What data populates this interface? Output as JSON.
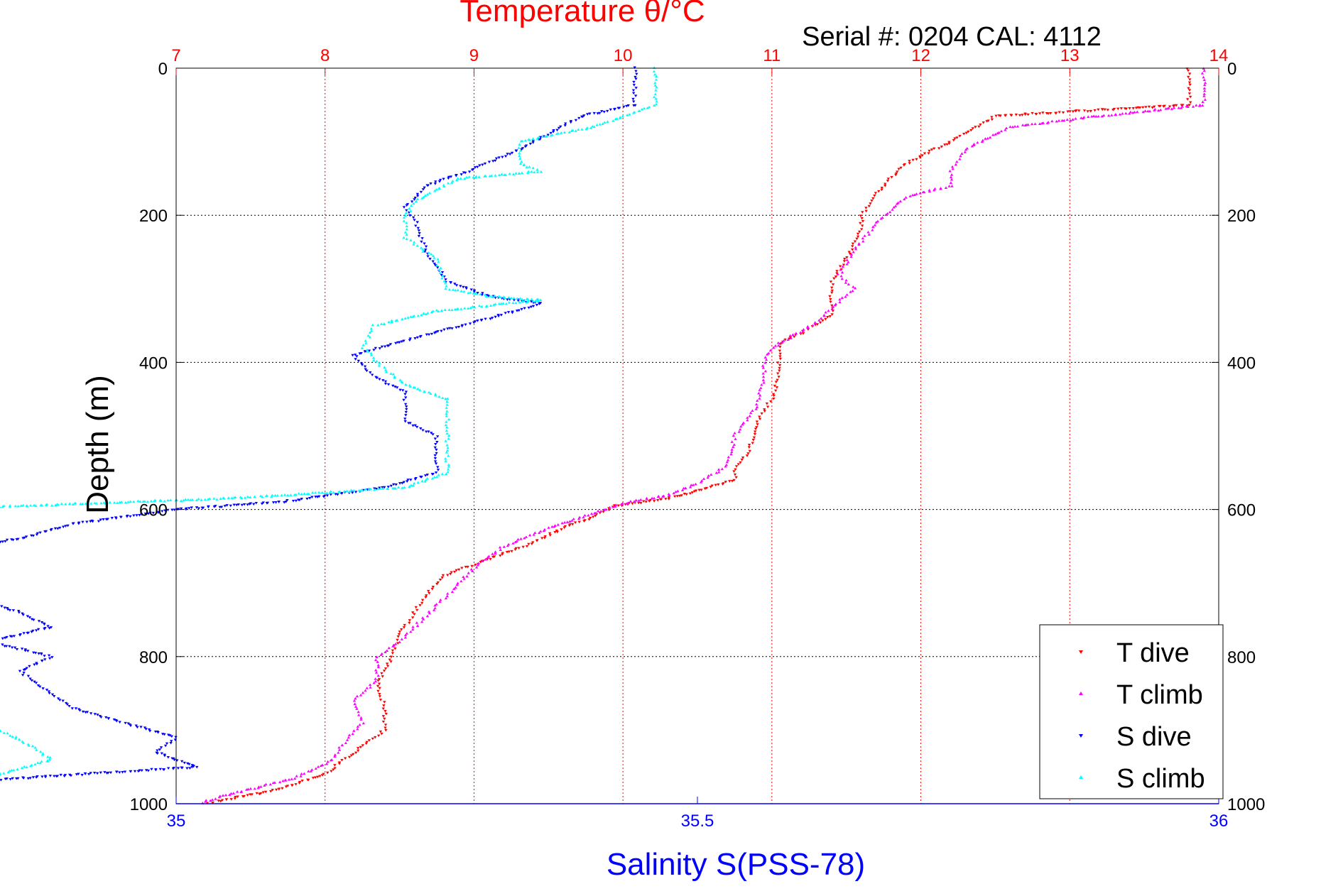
{
  "chart_data": {
    "type": "scatter",
    "title": "Temperature θ/°C",
    "subtitle": "Serial #: 0204  CAL: 4112",
    "ylabel": "Depth (m)",
    "x_top_label": "Temperature θ/°C",
    "x_bottom_label": "Salinity S(PSS-78)",
    "temperature_range": [
      7,
      14
    ],
    "salinity_range": [
      35,
      36
    ],
    "depth_range": [
      0,
      1000
    ],
    "y_reversed": true,
    "grid": true,
    "legend_position": "bottom-right",
    "temperature_ticks": [
      "7",
      "8",
      "9",
      "10",
      "11",
      "12",
      "13",
      "14"
    ],
    "salinity_ticks": [
      "35",
      "35.5",
      "36"
    ],
    "depth_ticks": [
      "0",
      "200",
      "400",
      "600",
      "800",
      "1000"
    ],
    "colors": {
      "T dive": "#ff0000",
      "T climb": "#ff00ff",
      "S dive": "#0000ff",
      "S climb": "#00ffff",
      "temperature_axis": "#ff0000",
      "salinity_axis": "#0000ff"
    },
    "series": [
      {
        "name": "T dive",
        "axis": "temperature",
        "points": [
          [
            13.8,
            0
          ],
          [
            13.8,
            50
          ],
          [
            12.5,
            65
          ],
          [
            12.2,
            100
          ],
          [
            11.9,
            130
          ],
          [
            11.7,
            170
          ],
          [
            11.6,
            200
          ],
          [
            11.6,
            215
          ],
          [
            11.5,
            260
          ],
          [
            11.4,
            290
          ],
          [
            11.4,
            310
          ],
          [
            11.4,
            335
          ],
          [
            11.2,
            360
          ],
          [
            11.05,
            375
          ],
          [
            11.05,
            400
          ],
          [
            11.05,
            420
          ],
          [
            11.0,
            450
          ],
          [
            10.9,
            480
          ],
          [
            10.85,
            520
          ],
          [
            10.75,
            545
          ],
          [
            10.75,
            560
          ],
          [
            10.5,
            575
          ],
          [
            10.3,
            585
          ],
          [
            9.95,
            595
          ],
          [
            9.8,
            610
          ],
          [
            9.6,
            625
          ],
          [
            9.4,
            645
          ],
          [
            9.2,
            660
          ],
          [
            9.0,
            675
          ],
          [
            8.8,
            690
          ],
          [
            8.7,
            710
          ],
          [
            8.6,
            740
          ],
          [
            8.5,
            770
          ],
          [
            8.45,
            800
          ],
          [
            8.35,
            840
          ],
          [
            8.4,
            870
          ],
          [
            8.4,
            900
          ],
          [
            8.2,
            930
          ],
          [
            8.0,
            960
          ],
          [
            7.7,
            980
          ],
          [
            7.2,
            1000
          ]
        ]
      },
      {
        "name": "T climb",
        "axis": "temperature",
        "points": [
          [
            13.9,
            0
          ],
          [
            13.9,
            50
          ],
          [
            13.2,
            65
          ],
          [
            12.6,
            80
          ],
          [
            12.3,
            110
          ],
          [
            12.2,
            140
          ],
          [
            12.2,
            160
          ],
          [
            11.9,
            175
          ],
          [
            11.7,
            210
          ],
          [
            11.55,
            250
          ],
          [
            11.45,
            280
          ],
          [
            11.55,
            300
          ],
          [
            11.3,
            345
          ],
          [
            11.0,
            380
          ],
          [
            10.95,
            400
          ],
          [
            10.95,
            420
          ],
          [
            10.9,
            460
          ],
          [
            10.75,
            500
          ],
          [
            10.7,
            540
          ],
          [
            10.5,
            565
          ],
          [
            10.3,
            580
          ],
          [
            10.0,
            592
          ],
          [
            9.8,
            605
          ],
          [
            9.5,
            625
          ],
          [
            9.2,
            650
          ],
          [
            9.05,
            670
          ],
          [
            8.95,
            690
          ],
          [
            8.9,
            700
          ],
          [
            8.8,
            720
          ],
          [
            8.6,
            760
          ],
          [
            8.5,
            780
          ],
          [
            8.35,
            800
          ],
          [
            8.35,
            830
          ],
          [
            8.2,
            860
          ],
          [
            8.25,
            890
          ],
          [
            8.15,
            910
          ],
          [
            8.05,
            940
          ],
          [
            7.8,
            965
          ],
          [
            7.3,
            990
          ],
          [
            7.15,
            1000
          ]
        ]
      },
      {
        "name": "S dive",
        "axis": "salinity",
        "points": [
          [
            35.44,
            0
          ],
          [
            35.44,
            50
          ],
          [
            35.39,
            65
          ],
          [
            35.37,
            80
          ],
          [
            35.33,
            110
          ],
          [
            35.28,
            140
          ],
          [
            35.24,
            160
          ],
          [
            35.22,
            190
          ],
          [
            35.23,
            210
          ],
          [
            35.24,
            250
          ],
          [
            35.26,
            290
          ],
          [
            35.3,
            310
          ],
          [
            35.35,
            320
          ],
          [
            35.3,
            340
          ],
          [
            35.22,
            370
          ],
          [
            35.17,
            390
          ],
          [
            35.19,
            420
          ],
          [
            35.22,
            440
          ],
          [
            35.22,
            480
          ],
          [
            35.25,
            500
          ],
          [
            35.25,
            550
          ],
          [
            35.2,
            570
          ],
          [
            35.1,
            590
          ],
          [
            35.0,
            600
          ],
          [
            34.9,
            620
          ],
          [
            34.85,
            640
          ],
          [
            34.75,
            660
          ],
          [
            34.7,
            680
          ],
          [
            34.65,
            700
          ],
          [
            34.8,
            720
          ],
          [
            34.85,
            740
          ],
          [
            34.88,
            760
          ],
          [
            34.82,
            780
          ],
          [
            34.88,
            800
          ],
          [
            34.85,
            820
          ],
          [
            34.88,
            850
          ],
          [
            34.9,
            870
          ],
          [
            34.95,
            890
          ],
          [
            35.0,
            910
          ],
          [
            34.98,
            930
          ],
          [
            35.02,
            950
          ],
          [
            34.8,
            970
          ],
          [
            34.6,
            985
          ],
          [
            34.35,
            995
          ],
          [
            34.3,
            1000
          ]
        ]
      },
      {
        "name": "S climb",
        "axis": "salinity",
        "points": [
          [
            35.46,
            0
          ],
          [
            35.46,
            50
          ],
          [
            35.43,
            65
          ],
          [
            35.4,
            80
          ],
          [
            35.33,
            100
          ],
          [
            35.33,
            130
          ],
          [
            35.35,
            140
          ],
          [
            35.27,
            150
          ],
          [
            35.23,
            180
          ],
          [
            35.22,
            200
          ],
          [
            35.22,
            230
          ],
          [
            35.25,
            260
          ],
          [
            35.26,
            300
          ],
          [
            35.3,
            310
          ],
          [
            35.35,
            315
          ],
          [
            35.25,
            330
          ],
          [
            35.19,
            350
          ],
          [
            35.18,
            380
          ],
          [
            35.2,
            410
          ],
          [
            35.22,
            430
          ],
          [
            35.26,
            450
          ],
          [
            35.26,
            500
          ],
          [
            35.26,
            550
          ],
          [
            35.22,
            570
          ],
          [
            35.05,
            585
          ],
          [
            34.85,
            595
          ],
          [
            34.6,
            610
          ],
          [
            34.58,
            620
          ],
          [
            34.72,
            635
          ],
          [
            34.68,
            660
          ],
          [
            34.6,
            685
          ],
          [
            34.62,
            700
          ],
          [
            34.75,
            720
          ],
          [
            34.8,
            750
          ],
          [
            34.72,
            780
          ],
          [
            34.7,
            800
          ],
          [
            34.72,
            830
          ],
          [
            34.76,
            860
          ],
          [
            34.8,
            880
          ],
          [
            34.83,
            900
          ],
          [
            34.86,
            920
          ],
          [
            34.88,
            940
          ],
          [
            34.83,
            960
          ],
          [
            34.6,
            980
          ],
          [
            34.4,
            995
          ],
          [
            34.3,
            1000
          ]
        ]
      }
    ]
  }
}
